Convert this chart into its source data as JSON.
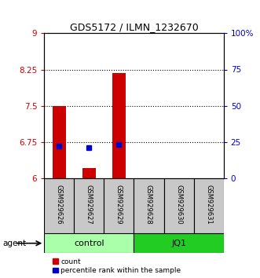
{
  "title": "GDS5172 / ILMN_1232670",
  "samples": [
    "GSM929626",
    "GSM929627",
    "GSM929629",
    "GSM929628",
    "GSM929630",
    "GSM929631"
  ],
  "bar_values": [
    7.5,
    6.2,
    8.18,
    null,
    null,
    null
  ],
  "percentile_values": [
    22,
    21,
    23,
    null,
    null,
    null
  ],
  "ylim_left": [
    6,
    9
  ],
  "ylim_right": [
    0,
    100
  ],
  "yticks_left": [
    6,
    6.75,
    7.5,
    8.25,
    9
  ],
  "yticks_right": [
    0,
    25,
    50,
    75,
    100
  ],
  "ytick_labels_left": [
    "6",
    "6.75",
    "7.5",
    "8.25",
    "9"
  ],
  "ytick_labels_right": [
    "0",
    "25",
    "50",
    "75",
    "100%"
  ],
  "hlines": [
    6.75,
    7.5,
    8.25
  ],
  "bar_color": "#CC0000",
  "percentile_color": "#0000CC",
  "bar_bottom": 6,
  "bar_width": 0.45,
  "percentile_marker_size": 5,
  "legend_items": [
    {
      "label": "count",
      "color": "#CC0000"
    },
    {
      "label": "percentile rank within the sample",
      "color": "#0000CC"
    }
  ],
  "sample_box_color": "#C8C8C8",
  "label_color_left": "#CC0000",
  "label_color_right": "#0000CC",
  "group_defs": [
    {
      "name": "control",
      "color": "#AAFFAA",
      "start": 0,
      "end": 2
    },
    {
      "name": "JQ1",
      "color": "#22CC22",
      "start": 3,
      "end": 5
    }
  ],
  "agent_label": "agent"
}
